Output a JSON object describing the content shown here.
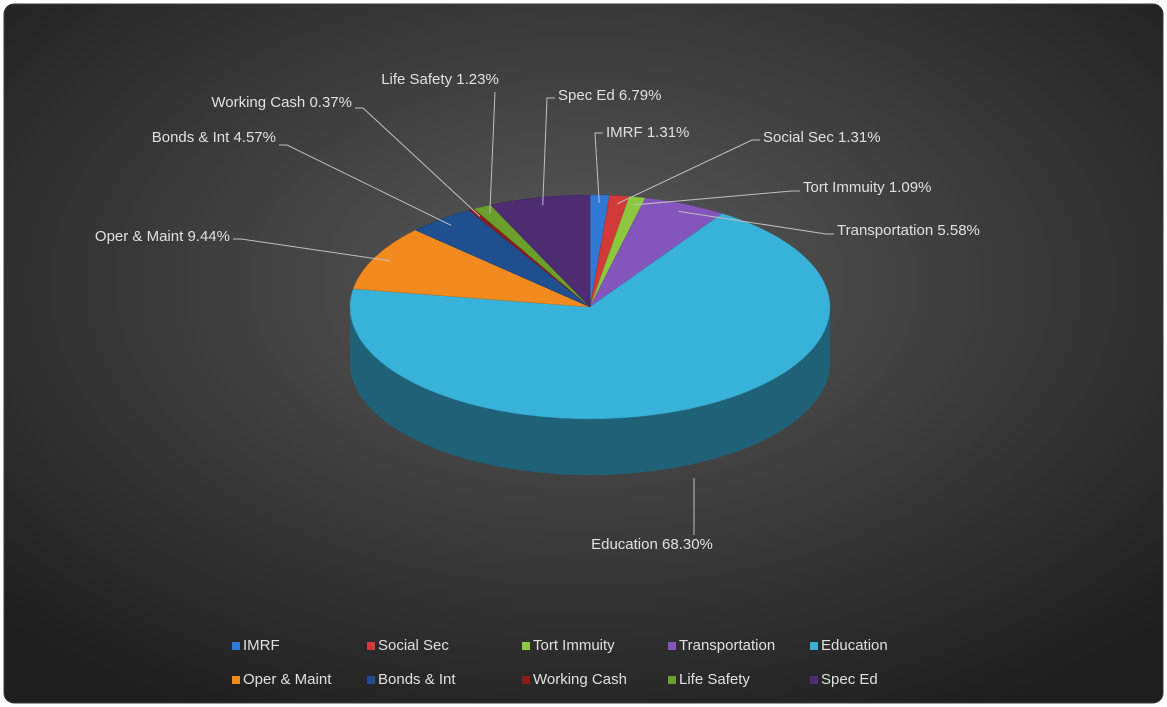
{
  "chart_data": {
    "type": "pie",
    "categories": [
      "IMRF",
      "Social Sec",
      "Tort Immuity",
      "Transportation",
      "Education",
      "Oper & Maint",
      "Bonds & Int",
      "Working Cash",
      "Life Safety",
      "Spec Ed"
    ],
    "values": [
      1.31,
      1.31,
      1.09,
      5.58,
      68.3,
      9.44,
      4.57,
      0.37,
      1.23,
      6.79
    ],
    "value_labels": [
      "1.31%",
      "1.31%",
      "1.09%",
      "5.58%",
      "68.30%",
      "9.44%",
      "4.57%",
      "0.37%",
      "1.23%",
      "6.79%"
    ],
    "colors": [
      "#2f78d4",
      "#d23a3a",
      "#8dc63f",
      "#8456bd",
      "#38b2d9",
      "#f28a1e",
      "#1f4f8f",
      "#8c1b1b",
      "#6a9f2b",
      "#4e2c72"
    ],
    "legend": "bottom"
  }
}
